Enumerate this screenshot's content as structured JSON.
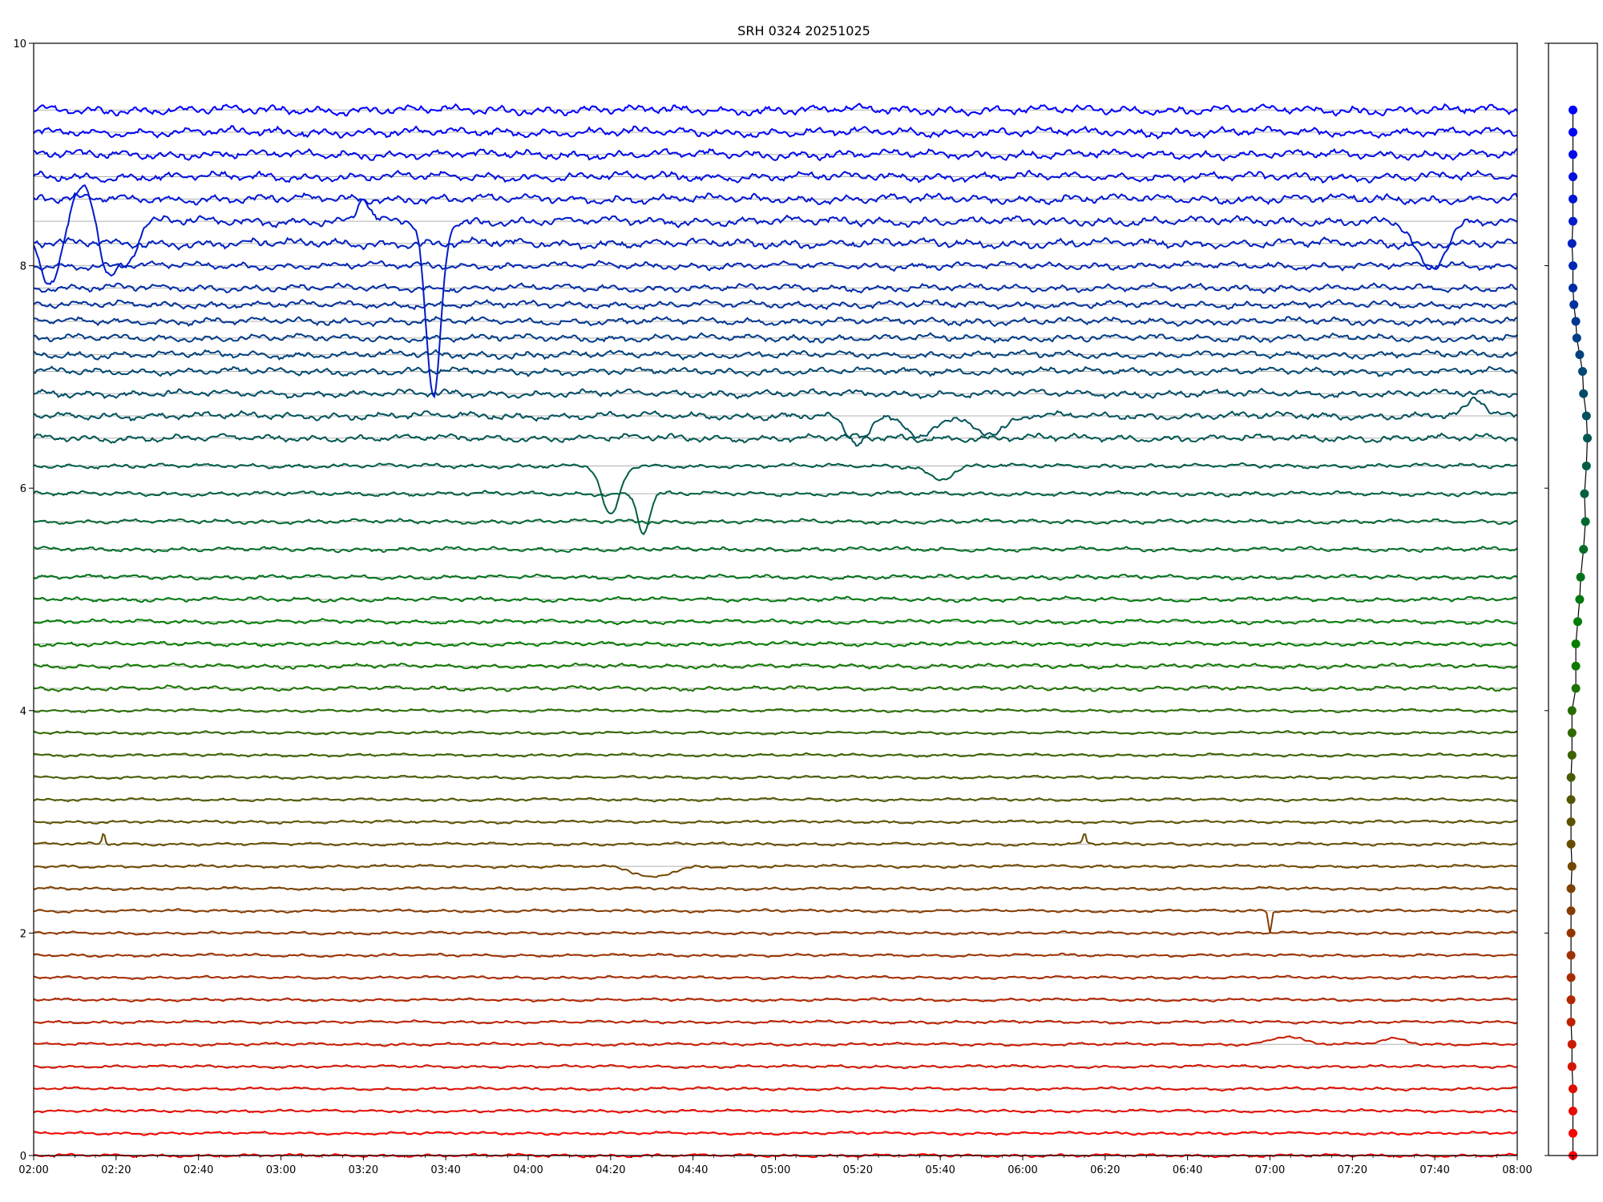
{
  "chart_data": {
    "type": "line",
    "title": "SRH 0324 20251025",
    "xlabel": "",
    "ylabel": "",
    "x_range": [
      "02:00",
      "08:00"
    ],
    "x_ticks": [
      "02:00",
      "02:20",
      "02:40",
      "03:00",
      "03:20",
      "03:40",
      "04:00",
      "04:20",
      "04:40",
      "05:00",
      "05:20",
      "05:40",
      "06:00",
      "06:20",
      "06:40",
      "07:00",
      "07:20",
      "07:40",
      "08:00"
    ],
    "ylim": [
      0,
      10
    ],
    "y_ticks": [
      "0",
      "2",
      "4",
      "6",
      "8",
      "10"
    ],
    "grid": "horizontal lines at each trace baseline",
    "legend": "none",
    "trace_count": 48,
    "color_start": "#ff0000",
    "color_end": "#0000ff",
    "baselines": [
      0.0,
      0.2,
      0.4,
      0.6,
      0.8,
      1.0,
      1.2,
      1.4,
      1.6,
      1.8,
      2.0,
      2.2,
      2.4,
      2.6,
      2.8,
      3.0,
      3.2,
      3.4,
      3.6,
      3.8,
      4.0,
      4.2,
      4.4,
      4.6,
      4.8,
      5.0,
      5.2,
      5.45,
      5.7,
      5.95,
      6.2,
      6.45,
      6.65,
      6.85,
      7.05,
      7.2,
      7.35,
      7.5,
      7.65,
      7.8,
      8.0,
      8.2,
      8.4,
      8.6,
      8.8,
      9.0,
      9.2,
      9.4
    ],
    "side_panel_offsets": [
      0.0,
      0.0,
      0.0,
      0.0,
      -0.02,
      -0.02,
      -0.04,
      -0.04,
      -0.04,
      -0.04,
      -0.04,
      -0.04,
      -0.04,
      -0.02,
      -0.04,
      -0.04,
      -0.04,
      -0.04,
      -0.02,
      -0.02,
      -0.02,
      0.06,
      0.06,
      0.06,
      0.1,
      0.14,
      0.16,
      0.22,
      0.26,
      0.24,
      0.28,
      0.3,
      0.28,
      0.22,
      0.2,
      0.14,
      0.08,
      0.06,
      0.02,
      0.0,
      0.0,
      -0.02,
      0.0,
      0.0,
      0.0,
      0.0,
      0.0,
      0.0
    ],
    "events": [
      {
        "trace": 42,
        "time": "02:04",
        "depth": 0.55,
        "width_min": 4
      },
      {
        "trace": 42,
        "time": "02:12",
        "depth": -0.35,
        "width_min": 4
      },
      {
        "trace": 42,
        "time": "02:18",
        "depth": 0.5,
        "width_min": 3
      },
      {
        "trace": 42,
        "time": "02:23",
        "depth": 0.35,
        "width_min": 3
      },
      {
        "trace": 42,
        "time": "03:20",
        "depth": -0.2,
        "width_min": 2
      },
      {
        "trace": 42,
        "time": "03:37",
        "depth": 1.6,
        "width_min": 2.5
      },
      {
        "trace": 42,
        "time": "07:39",
        "depth": 0.45,
        "width_min": 5
      },
      {
        "trace": 32,
        "time": "05:20",
        "depth": 0.25,
        "width_min": 4
      },
      {
        "trace": 32,
        "time": "05:35",
        "depth": 0.2,
        "width_min": 4
      },
      {
        "trace": 32,
        "time": "05:52",
        "depth": 0.15,
        "width_min": 6
      },
      {
        "trace": 32,
        "time": "07:50",
        "depth": -0.15,
        "width_min": 3
      },
      {
        "trace": 30,
        "time": "04:20",
        "depth": 0.45,
        "width_min": 3
      },
      {
        "trace": 29,
        "time": "04:28",
        "depth": 0.35,
        "width_min": 2
      },
      {
        "trace": 30,
        "time": "05:40",
        "depth": 0.12,
        "width_min": 4
      },
      {
        "trace": 14,
        "time": "02:17",
        "depth": -0.1,
        "width_min": 0.5
      },
      {
        "trace": 14,
        "time": "06:15",
        "depth": -0.1,
        "width_min": 0.5
      },
      {
        "trace": 13,
        "time": "04:30",
        "depth": 0.1,
        "width_min": 6
      },
      {
        "trace": 11,
        "time": "07:00",
        "depth": 0.2,
        "width_min": 0.5
      },
      {
        "trace": 5,
        "time": "07:04",
        "depth": -0.07,
        "width_min": 5
      },
      {
        "trace": 5,
        "time": "07:30",
        "depth": -0.05,
        "width_min": 5
      }
    ]
  }
}
